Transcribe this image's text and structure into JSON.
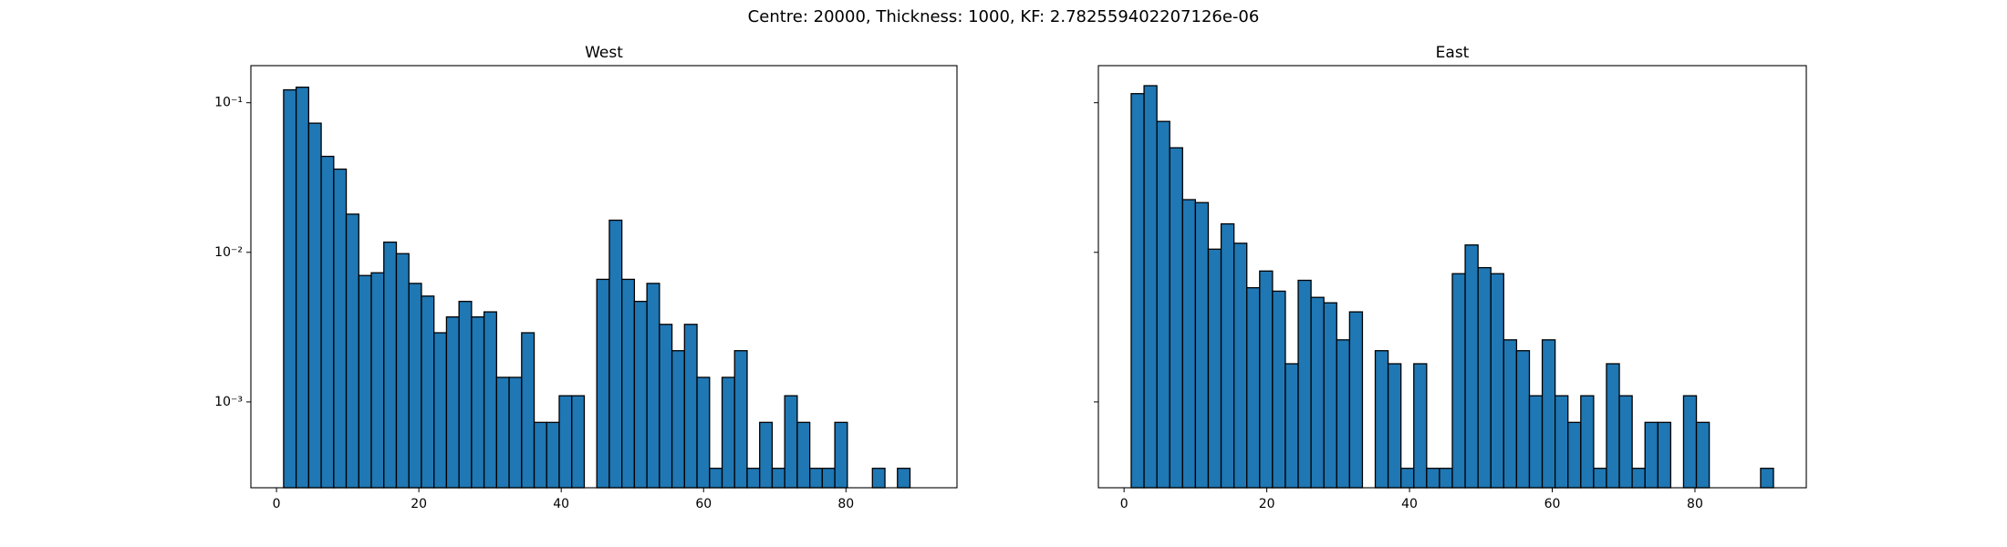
{
  "title": "Centre: 20000, Thickness: 1000, KF: 2.782559402207126e-06",
  "chart_data": [
    {
      "type": "histogram",
      "title": "West",
      "color": "#1f77b4",
      "edgecolor": "#000000",
      "log_y": true,
      "bins": [
        1,
        2.76,
        4.52,
        6.28,
        8.04,
        9.8,
        11.56,
        13.32,
        15.08,
        16.84,
        18.6,
        20.36,
        22.12,
        23.88,
        25.64,
        27.4,
        29.16,
        30.92,
        32.68,
        34.44,
        36.2,
        37.96,
        39.72,
        41.48,
        43.24,
        45,
        46.76,
        48.52,
        50.28,
        52.04,
        53.8,
        55.56,
        57.32,
        59.08,
        60.84,
        62.6,
        64.36,
        66.12,
        67.88,
        69.64,
        71.4,
        73.16,
        74.92,
        76.68,
        78.44,
        80.2,
        81.96,
        83.72,
        85.48,
        87.24,
        89
      ],
      "values": [
        0.122,
        0.127,
        0.073,
        0.0438,
        0.036,
        0.018,
        0.007,
        0.0073,
        0.0117,
        0.0098,
        0.0062,
        0.0051,
        0.0029,
        0.0037,
        0.0047,
        0.0037,
        0.004,
        0.00146,
        0.00146,
        0.0029,
        0.00073,
        0.00073,
        0.0011,
        0.0011,
        0,
        0.0066,
        0.0164,
        0.0066,
        0.0047,
        0.0062,
        0.0033,
        0.0022,
        0.0033,
        0.00146,
        0.00036,
        0.00146,
        0.0022,
        0.00036,
        0.00073,
        0.00036,
        0.0011,
        0.00073,
        0.00036,
        0.00036,
        0.00073,
        0,
        0,
        0.00036,
        0,
        0.00036
      ],
      "xlim": [
        -3.6,
        95.6
      ],
      "xticks": [
        0,
        20,
        40,
        60,
        80
      ],
      "ylim": [
        0.000267,
        0.177
      ],
      "yticks": [
        {
          "value": 0.001,
          "label": "10⁻³"
        },
        {
          "value": 0.01,
          "label": "10⁻²"
        },
        {
          "value": 0.1,
          "label": "10⁻¹"
        }
      ]
    },
    {
      "type": "histogram",
      "title": "East",
      "color": "#1f77b4",
      "edgecolor": "#000000",
      "log_y": true,
      "bins": [
        1,
        2.8,
        4.6,
        6.4,
        8.2,
        10,
        11.8,
        13.6,
        15.4,
        17.2,
        19,
        20.8,
        22.6,
        24.4,
        26.2,
        28,
        29.8,
        31.6,
        33.4,
        35.2,
        37,
        38.8,
        40.6,
        42.4,
        44.2,
        46,
        47.8,
        49.6,
        51.4,
        53.2,
        55,
        56.8,
        58.6,
        60.4,
        62.2,
        64,
        65.8,
        67.6,
        69.4,
        71.2,
        73,
        74.8,
        76.6,
        78.4,
        80.2,
        82,
        83.8,
        85.6,
        87.4,
        89.2,
        91
      ],
      "values": [
        0.115,
        0.13,
        0.075,
        0.05,
        0.0225,
        0.0215,
        0.0105,
        0.0155,
        0.0115,
        0.0058,
        0.0075,
        0.0055,
        0.0018,
        0.0065,
        0.005,
        0.0046,
        0.0026,
        0.004,
        0,
        0.0022,
        0.0018,
        0.00036,
        0.0018,
        0.00036,
        0.00036,
        0.0072,
        0.0112,
        0.0079,
        0.0072,
        0.0026,
        0.0022,
        0.0011,
        0.0026,
        0.0011,
        0.00073,
        0.0011,
        0.00036,
        0.0018,
        0.0011,
        0.00036,
        0.00073,
        0.00073,
        0,
        0.0011,
        0.00073,
        0,
        0,
        0,
        0,
        0.00036
      ],
      "xlim": [
        -3.6,
        95.6
      ],
      "xticks": [
        0,
        20,
        40,
        60,
        80
      ],
      "ylim": [
        0.000267,
        0.177
      ],
      "yticks": [
        0.001,
        0.01,
        0.1
      ]
    }
  ]
}
